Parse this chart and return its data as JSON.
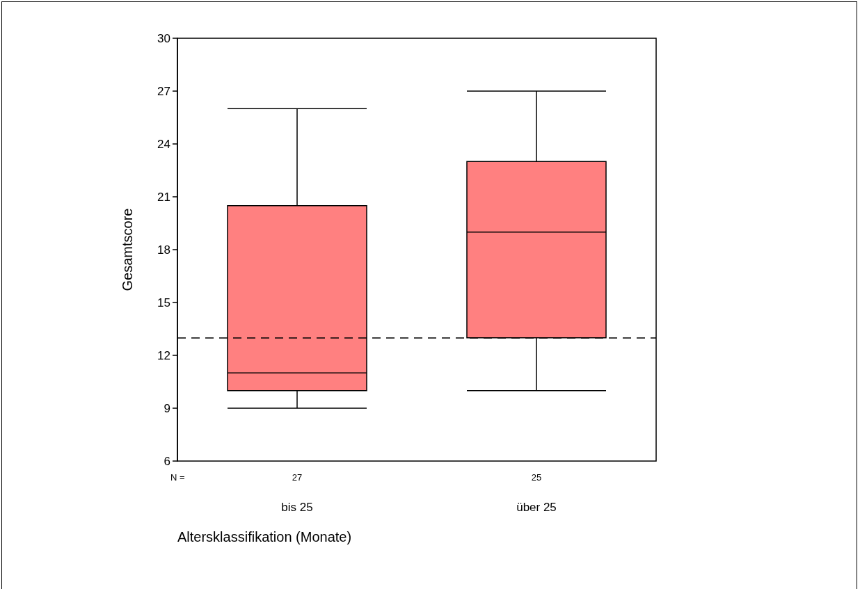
{
  "chart_data": {
    "type": "box",
    "categories": [
      "bis 25",
      "über 25"
    ],
    "xlabel": "Altersklassifikation (Monate)",
    "ylabel": "Gesamtscore",
    "series": [
      {
        "color": "#ff8080",
        "boxes": [
          {
            "low": 9,
            "q1": 10,
            "median": 11,
            "q3": 20.5,
            "high": 26
          },
          {
            "low": 10,
            "q1": 13,
            "median": 19,
            "q3": 23,
            "high": 27
          }
        ]
      }
    ],
    "ylim": [
      6,
      30
    ],
    "yticks": [
      6,
      9,
      12,
      15,
      18,
      21,
      24,
      27,
      30
    ],
    "ref_lines": [
      {
        "axis": "y",
        "value": 13,
        "label": null,
        "color": "#000000",
        "line_style": "dashed"
      }
    ],
    "annotations": [
      "N =",
      "27",
      "25"
    ],
    "grid": false
  }
}
